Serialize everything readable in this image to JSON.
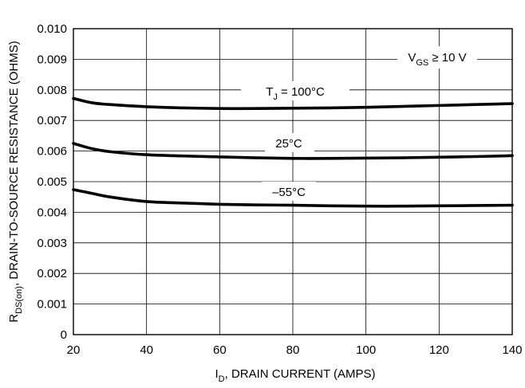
{
  "chart_data": {
    "type": "line",
    "xlabel": {
      "main": "I",
      "sub": "D",
      "rest": ", DRAIN CURRENT (AMPS)"
    },
    "ylabel": {
      "main": "R",
      "sub": "DS(on)",
      "rest": ", DRAIN-TO-SOURCE RESISTANCE (OHMS)"
    },
    "xlim": [
      20,
      140
    ],
    "ylim": [
      0,
      0.01
    ],
    "xticks": [
      "20",
      "40",
      "60",
      "80",
      "100",
      "120",
      "140"
    ],
    "yticks": [
      "0",
      "0.001",
      "0.002",
      "0.003",
      "0.004",
      "0.005",
      "0.006",
      "0.007",
      "0.008",
      "0.009",
      "0.010"
    ],
    "grid": true,
    "condition": {
      "main": "V",
      "sub": "GS",
      "rest": " ≥ 10 V"
    },
    "series": [
      {
        "name": {
          "main": "T",
          "sub": "J",
          "rest": " =  100°C"
        },
        "x": [
          20,
          25,
          30,
          40,
          50,
          60,
          70,
          80,
          90,
          100,
          110,
          120,
          130,
          140
        ],
        "y": [
          0.00772,
          0.00758,
          0.00752,
          0.00745,
          0.00741,
          0.00739,
          0.00739,
          0.0074,
          0.00741,
          0.00743,
          0.00746,
          0.00749,
          0.00752,
          0.00755
        ]
      },
      {
        "name": {
          "main": "25°C",
          "sub": "",
          "rest": ""
        },
        "x": [
          20,
          25,
          30,
          40,
          50,
          60,
          70,
          80,
          90,
          100,
          110,
          120,
          130,
          140
        ],
        "y": [
          0.00625,
          0.00608,
          0.00598,
          0.00588,
          0.00584,
          0.00581,
          0.00578,
          0.00576,
          0.00576,
          0.00577,
          0.00578,
          0.0058,
          0.00582,
          0.00585
        ]
      },
      {
        "name": {
          "main": "–55°C",
          "sub": "",
          "rest": ""
        },
        "x": [
          20,
          25,
          30,
          40,
          50,
          60,
          70,
          80,
          90,
          100,
          110,
          120,
          130,
          140
        ],
        "y": [
          0.00474,
          0.00462,
          0.0045,
          0.00435,
          0.0043,
          0.00426,
          0.00424,
          0.00423,
          0.00421,
          0.0042,
          0.0042,
          0.00421,
          0.00422,
          0.00423
        ]
      }
    ]
  }
}
